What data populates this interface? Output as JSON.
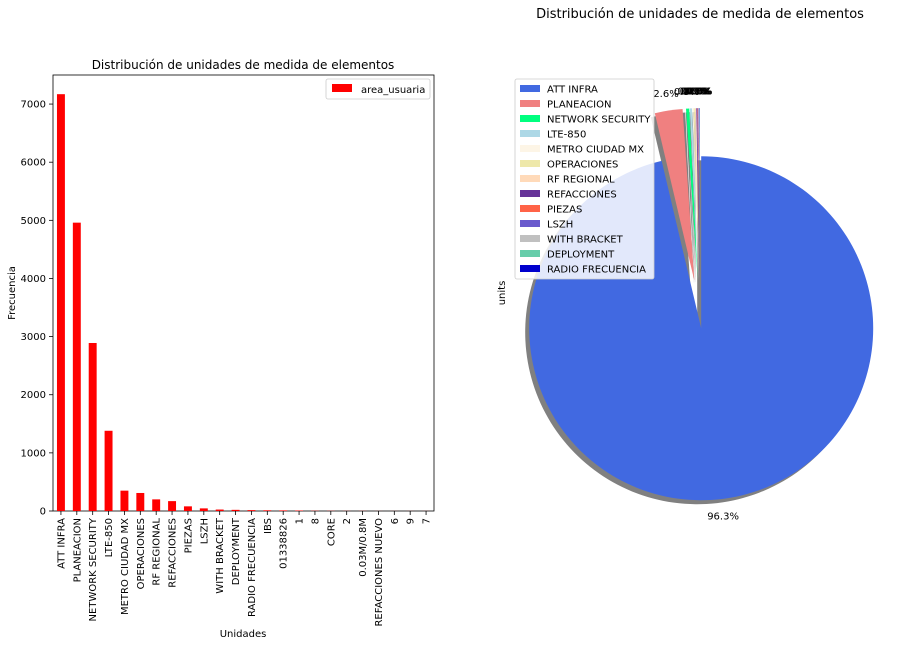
{
  "figure_title": "Distribución de unidades de medida de elementos",
  "chart_data": [
    {
      "type": "bar",
      "title": "Distribución de unidades de medida de elementos",
      "xlabel": "Unidades",
      "ylabel": "Frecuencia",
      "ylim": [
        0,
        7500
      ],
      "yticks": [
        0,
        1000,
        2000,
        3000,
        4000,
        5000,
        6000,
        7000
      ],
      "legend": "top-right",
      "grid": false,
      "color": "#ff0000",
      "categories": [
        "ATT INFRA",
        "PLANEACION",
        "NETWORK SECURITY",
        "LTE-850",
        "METRO CIUDAD MX",
        "OPERACIONES",
        "RF REGIONAL",
        "REFACCIONES",
        "PIEZAS",
        "LSZH",
        "WITH BRACKET",
        "DEPLOYMENT",
        "RADIO FRECUENCIA",
        "IBS",
        "01338826",
        "1",
        "8",
        "CORE",
        "2",
        "0.03M/0.8M",
        "REFACCIONES NUEVO",
        "6",
        "9",
        "7"
      ],
      "series": [
        {
          "name": "area_usuaria",
          "values": [
            7170,
            4960,
            2890,
            1380,
            350,
            310,
            200,
            170,
            80,
            45,
            25,
            20,
            15,
            12,
            10,
            8,
            4,
            3,
            2,
            2,
            1,
            1,
            1,
            1
          ]
        }
      ]
    },
    {
      "type": "pie",
      "title": "",
      "ylabel": "units",
      "legend": "top-left",
      "shadow": true,
      "categories": [
        "ATT INFRA",
        "PLANEACION",
        "NETWORK SECURITY",
        "LTE-850",
        "METRO CIUDAD MX",
        "OPERACIONES",
        "RF REGIONAL",
        "REFACCIONES",
        "PIEZAS",
        "LSZH",
        "WITH BRACKET",
        "DEPLOYMENT",
        "RADIO FRECUENCIA"
      ],
      "values": [
        96.3,
        2.6,
        0.3,
        0.2,
        0.1,
        0.1,
        0.1,
        0.1,
        0.05,
        0.05,
        0.03,
        0.03,
        0.03
      ],
      "labels": [
        "96.3%",
        "2.6%",
        "0.3%",
        "0.2%",
        "0.1%",
        "0.1%",
        "0.1%",
        "0.1%",
        "0.1%",
        "0.1%",
        "0.0%",
        "0.0%",
        "0.0%"
      ],
      "colors": [
        "#4169e1",
        "#f08080",
        "#00ff7f",
        "#add8e6",
        "#fdf5e6",
        "#eee8aa",
        "#ffdab9",
        "#663399",
        "#ff6347",
        "#6a5acd",
        "#c0c0c0",
        "#66cdaa",
        "#0000cd"
      ]
    }
  ]
}
